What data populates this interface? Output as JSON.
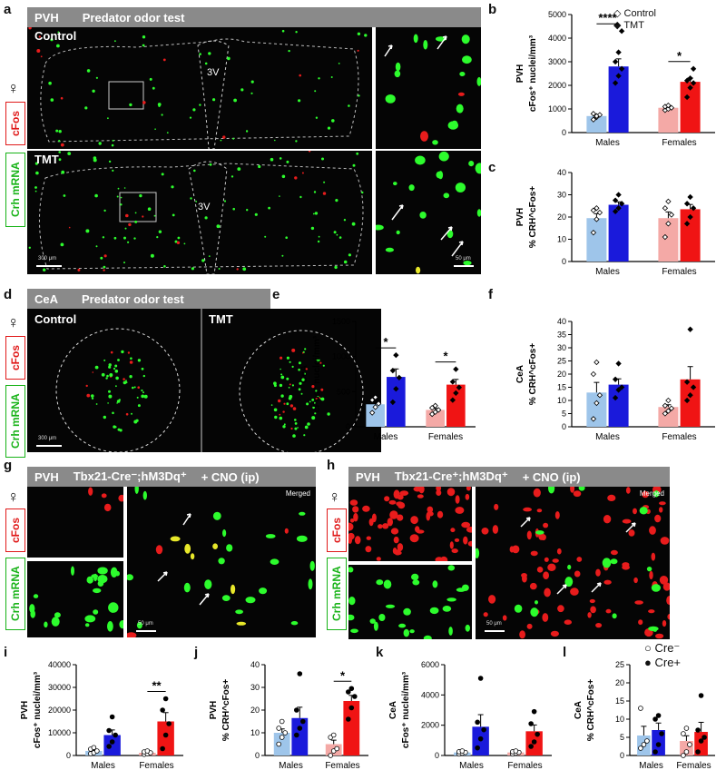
{
  "colors": {
    "control_male": "#9ec5ea",
    "tmt_male": "#1a1adb",
    "control_female": "#f4a9a6",
    "tmt_female": "#f01414",
    "green": "#2dfc2d",
    "red": "#e81c1c",
    "band": "#8a8a8a"
  },
  "panel_letters": {
    "a": "a",
    "b": "b",
    "c": "c",
    "d": "d",
    "e": "e",
    "f": "f",
    "g": "g",
    "h": "h",
    "i": "i",
    "j": "j",
    "k": "k",
    "l": "l"
  },
  "female_symbol": "♀",
  "stain_labels": {
    "cfos": "cFos",
    "crh": "Crh mRNA"
  },
  "panel_a": {
    "region": "PVH",
    "title": "Predator odor test",
    "control": "Control",
    "tmt": "TMT",
    "ventricle": "3V",
    "scale_main": "300 μm",
    "scale_zoom": "50 μm"
  },
  "panel_d": {
    "region": "CeA",
    "title": "Predator odor test",
    "control": "Control",
    "tmt": "TMT",
    "scale": "300 μm"
  },
  "panel_g": {
    "region": "PVH",
    "genotype": "Tbx21-Cre⁻;hM3Dq⁺",
    "treatment": "+ CNO (ip)",
    "merged": "Merged",
    "scale": "50 μm"
  },
  "panel_h": {
    "region": "PVH",
    "genotype": "Tbx21-Cre⁺;hM3Dq⁺",
    "treatment": "+ CNO (ip)",
    "merged": "Merged",
    "scale": "50 μm"
  },
  "legend_top": {
    "control": "Control",
    "tmt": "TMT"
  },
  "legend_bottom": {
    "cre_neg": "Cre⁻",
    "cre_pos": "Cre+"
  },
  "chart_data": [
    {
      "id": "b",
      "type": "bar",
      "region": "PVH",
      "ylabel": "cFos⁺ nuclei/mm³",
      "ylim": [
        0,
        5000
      ],
      "ticks": [
        0,
        1000,
        2000,
        3000,
        4000,
        5000
      ],
      "groups": [
        "Males",
        "Females"
      ],
      "series": [
        {
          "name": "Control",
          "values": [
            700,
            1050
          ]
        },
        {
          "name": "TMT",
          "values": [
            2800,
            2150
          ]
        }
      ],
      "points": [
        [
          550,
          650,
          750,
          800,
          700
        ],
        [
          2100,
          2400,
          2700,
          3000,
          3400,
          4300
        ],
        [
          950,
          1000,
          1050,
          1100,
          1150
        ],
        [
          1500,
          1900,
          2100,
          2200,
          2300,
          2700
        ]
      ],
      "significance": [
        {
          "group": "Males",
          "label": "****"
        },
        {
          "group": "Females",
          "label": "*"
        }
      ]
    },
    {
      "id": "c",
      "type": "bar",
      "region": "PVH",
      "ylabel": "% CRH^cFos+",
      "ylim": [
        0,
        40
      ],
      "ticks": [
        0,
        10,
        20,
        30,
        40
      ],
      "groups": [
        "Males",
        "Females"
      ],
      "series": [
        {
          "name": "Control",
          "values": [
            19.5,
            19.5
          ]
        },
        {
          "name": "TMT",
          "values": [
            25.5,
            23.5
          ]
        }
      ],
      "points": [
        [
          13,
          19,
          22,
          23,
          24
        ],
        [
          22.5,
          24,
          26,
          27.5,
          30
        ],
        [
          11,
          17,
          21,
          24,
          27
        ],
        [
          17,
          20,
          24,
          26,
          29
        ]
      ]
    },
    {
      "id": "e",
      "type": "bar",
      "region": "CeA",
      "ylabel": "cFos⁺ nuclei/mm³",
      "ylim": [
        0,
        1500
      ],
      "ticks": [
        0,
        500,
        1000,
        1500
      ],
      "groups": [
        "Males",
        "Females"
      ],
      "series": [
        {
          "name": "Control",
          "values": [
            320,
            240
          ]
        },
        {
          "name": "TMT",
          "values": [
            710,
            600
          ]
        }
      ],
      "points": [
        [
          200,
          280,
          330,
          380,
          420
        ],
        [
          350,
          540,
          700,
          800,
          1020
        ],
        [
          180,
          210,
          240,
          270,
          300
        ],
        [
          380,
          480,
          560,
          640,
          820
        ]
      ],
      "significance": [
        {
          "group": "Males",
          "label": "*"
        },
        {
          "group": "Females",
          "label": "*"
        }
      ]
    },
    {
      "id": "f",
      "type": "bar",
      "region": "CeA",
      "ylabel": "% CRH^cFos+",
      "ylim": [
        0,
        40
      ],
      "ticks": [
        0,
        5,
        10,
        15,
        20,
        25,
        30,
        35,
        40
      ],
      "groups": [
        "Males",
        "Females"
      ],
      "series": [
        {
          "name": "Control",
          "values": [
            13,
            7.5
          ]
        },
        {
          "name": "TMT",
          "values": [
            16,
            18
          ]
        }
      ],
      "points": [
        [
          3,
          9,
          12,
          20,
          24.5
        ],
        [
          11,
          14,
          15,
          18,
          24
        ],
        [
          5,
          6,
          7,
          8,
          10
        ],
        [
          10,
          12,
          15,
          17,
          37
        ]
      ]
    },
    {
      "id": "i",
      "type": "bar",
      "region": "PVH",
      "ylabel": "cFos⁺ nuclei/mm³",
      "ylim": [
        0,
        40000
      ],
      "ticks": [
        0,
        10000,
        20000,
        30000,
        40000
      ],
      "groups": [
        "Males",
        "Females"
      ],
      "series": [
        {
          "name": "Cre⁻",
          "values": [
            2000,
            1200
          ]
        },
        {
          "name": "Cre+",
          "values": [
            9000,
            15000
          ]
        }
      ],
      "points": [
        [
          800,
          1200,
          2000,
          2800,
          3500
        ],
        [
          4000,
          6000,
          9000,
          11000,
          17000
        ],
        [
          500,
          800,
          1200,
          1600,
          2000
        ],
        [
          3000,
          9000,
          14000,
          20000,
          25000
        ]
      ],
      "significance": [
        {
          "group": "Females",
          "label": "**"
        }
      ]
    },
    {
      "id": "j",
      "type": "bar",
      "region": "PVH",
      "ylabel": "% CRH^cFos+",
      "ylim": [
        0,
        40
      ],
      "ticks": [
        0,
        10,
        20,
        30,
        40
      ],
      "groups": [
        "Males",
        "Females"
      ],
      "series": [
        {
          "name": "Cre⁻",
          "values": [
            10,
            5
          ]
        },
        {
          "name": "Cre+",
          "values": [
            16.5,
            24
          ]
        }
      ],
      "points": [
        [
          5,
          8,
          10,
          12,
          15
        ],
        [
          9,
          12,
          15,
          20,
          36
        ],
        [
          0,
          2,
          3,
          8,
          9
        ],
        [
          16,
          21,
          26,
          28,
          29.5
        ]
      ],
      "significance": [
        {
          "group": "Females",
          "label": "*"
        }
      ]
    },
    {
      "id": "k",
      "type": "bar",
      "region": "CeA",
      "ylabel": "cFos⁺ nuclei/mm³",
      "ylim": [
        0,
        6000
      ],
      "ticks": [
        0,
        2000,
        4000,
        6000
      ],
      "groups": [
        "Males",
        "Females"
      ],
      "series": [
        {
          "name": "Cre⁻",
          "values": [
            200,
            200
          ]
        },
        {
          "name": "Cre+",
          "values": [
            1900,
            1600
          ]
        }
      ],
      "points": [
        [
          100,
          150,
          200,
          250,
          300
        ],
        [
          500,
          1100,
          1700,
          2200,
          5100
        ],
        [
          100,
          150,
          200,
          250,
          300
        ],
        [
          600,
          900,
          1400,
          2100,
          2900
        ]
      ]
    },
    {
      "id": "l",
      "type": "bar",
      "region": "CeA",
      "ylabel": "% CRH^cFos+",
      "ylim": [
        0,
        25
      ],
      "ticks": [
        0,
        5,
        10,
        15,
        20,
        25
      ],
      "groups": [
        "Males",
        "Females"
      ],
      "series": [
        {
          "name": "Cre⁻",
          "values": [
            5.5,
            4
          ]
        },
        {
          "name": "Cre+",
          "values": [
            7,
            6.5
          ]
        }
      ],
      "points": [
        [
          2,
          3,
          4,
          13
        ],
        [
          1,
          3,
          6,
          10,
          11
        ],
        [
          0,
          1,
          3,
          6,
          7.5
        ],
        [
          1,
          4,
          5,
          7,
          16.5
        ]
      ]
    }
  ]
}
